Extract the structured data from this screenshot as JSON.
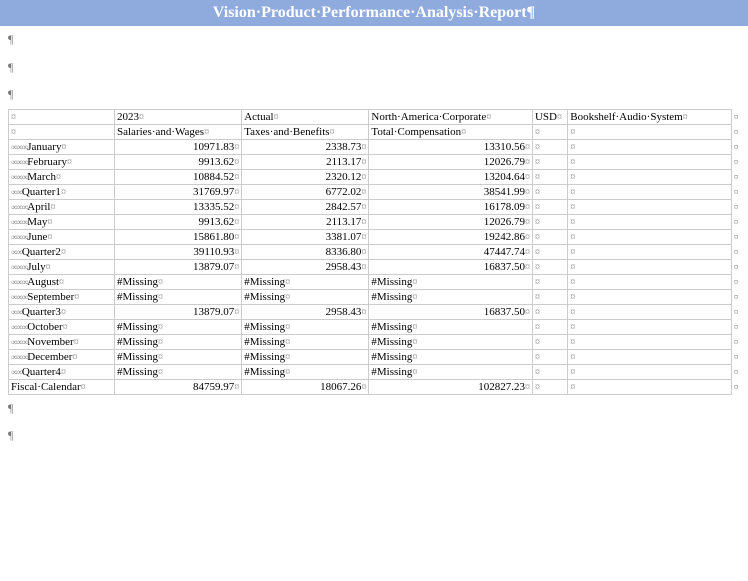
{
  "header": {
    "title": "Vision·Product·Performance·Analysis·Report¶"
  },
  "marks": {
    "pilcrow": "¶",
    "cell": "¤",
    "end": "¤"
  },
  "colors": {
    "header_bg": "#8faadc",
    "header_text": "#ffffff",
    "border": "#cccccc",
    "mark": "#888888"
  },
  "table": {
    "header_row1": {
      "c0": "",
      "c1": "2023",
      "c2": "Actual",
      "c3": "North·America·Corporate",
      "c4": "USD",
      "c5": "Bookshelf·Audio·System"
    },
    "header_row2": {
      "c0": "",
      "c1": "Salaries·and·Wages",
      "c2": "Taxes·and·Benefits",
      "c3": "Total·Compensation",
      "c4": "",
      "c5": ""
    },
    "rows": [
      {
        "indent": 3,
        "label": "January",
        "v1": "10971.83",
        "v2": "2338.73",
        "v3": "13310.56",
        "v4": "",
        "v5": ""
      },
      {
        "indent": 3,
        "label": "February",
        "v1": "9913.62",
        "v2": "2113.17",
        "v3": "12026.79",
        "v4": "",
        "v5": ""
      },
      {
        "indent": 3,
        "label": "March",
        "v1": "10884.52",
        "v2": "2320.12",
        "v3": "13204.64",
        "v4": "",
        "v5": ""
      },
      {
        "indent": 2,
        "label": "Quarter1",
        "v1": "31769.97",
        "v2": "6772.02",
        "v3": "38541.99",
        "v4": "",
        "v5": ""
      },
      {
        "indent": 3,
        "label": "April",
        "v1": "13335.52",
        "v2": "2842.57",
        "v3": "16178.09",
        "v4": "",
        "v5": ""
      },
      {
        "indent": 3,
        "label": "May",
        "v1": "9913.62",
        "v2": "2113.17",
        "v3": "12026.79",
        "v4": "",
        "v5": ""
      },
      {
        "indent": 3,
        "label": "June",
        "v1": "15861.80",
        "v2": "3381.07",
        "v3": "19242.86",
        "v4": "",
        "v5": ""
      },
      {
        "indent": 2,
        "label": "Quarter2",
        "v1": "39110.93",
        "v2": "8336.80",
        "v3": "47447.74",
        "v4": "",
        "v5": ""
      },
      {
        "indent": 3,
        "label": "July",
        "v1": "13879.07",
        "v2": "2958.43",
        "v3": "16837.50",
        "v4": "",
        "v5": ""
      },
      {
        "indent": 3,
        "label": "August",
        "v1": "#Missing",
        "v2": "#Missing",
        "v3": "#Missing",
        "v4": "",
        "v5": "",
        "missing": true
      },
      {
        "indent": 3,
        "label": "September",
        "v1": "#Missing",
        "v2": "#Missing",
        "v3": "#Missing",
        "v4": "",
        "v5": "",
        "missing": true
      },
      {
        "indent": 2,
        "label": "Quarter3",
        "v1": "13879.07",
        "v2": "2958.43",
        "v3": "16837.50",
        "v4": "",
        "v5": ""
      },
      {
        "indent": 3,
        "label": "October",
        "v1": "#Missing",
        "v2": "#Missing",
        "v3": "#Missing",
        "v4": "",
        "v5": "",
        "missing": true
      },
      {
        "indent": 3,
        "label": "November",
        "v1": "#Missing",
        "v2": "#Missing",
        "v3": "#Missing",
        "v4": "",
        "v5": "",
        "missing": true
      },
      {
        "indent": 3,
        "label": "December",
        "v1": "#Missing",
        "v2": "#Missing",
        "v3": "#Missing",
        "v4": "",
        "v5": "",
        "missing": true
      },
      {
        "indent": 2,
        "label": "Quarter4",
        "v1": "#Missing",
        "v2": "#Missing",
        "v3": "#Missing",
        "v4": "",
        "v5": "",
        "missing": true
      },
      {
        "indent": 0,
        "label": "Fiscal·Calendar",
        "v1": "84759.97",
        "v2": "18067.26",
        "v3": "102827.23",
        "v4": "",
        "v5": ""
      }
    ]
  }
}
